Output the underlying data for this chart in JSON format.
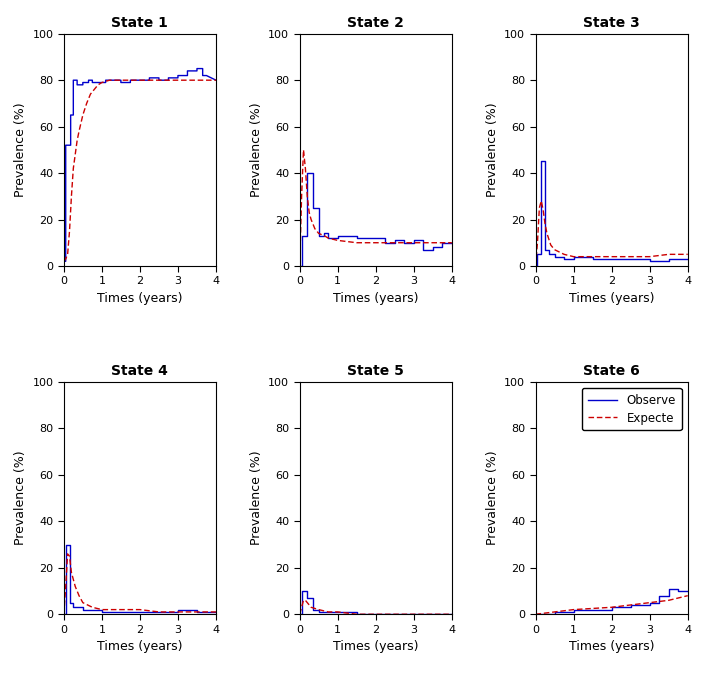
{
  "titles": [
    "State 1",
    "State 2",
    "State 3",
    "State 4",
    "State 5",
    "State 6"
  ],
  "xlabel": "Times (years)",
  "ylabel": "Prevalence (%)",
  "ylim": [
    0,
    100
  ],
  "xlim": [
    0,
    4
  ],
  "yticks": [
    0,
    20,
    40,
    60,
    80,
    100
  ],
  "xticks": [
    0,
    1,
    2,
    3,
    4
  ],
  "state1_obs_x": [
    0,
    0.05,
    0.05,
    0.18,
    0.18,
    0.25,
    0.25,
    0.35,
    0.35,
    0.5,
    0.5,
    0.65,
    0.65,
    0.75,
    0.75,
    1.0,
    1.0,
    1.1,
    1.1,
    1.5,
    1.5,
    1.75,
    1.75,
    2.0,
    2.0,
    2.25,
    2.25,
    2.5,
    2.5,
    2.75,
    2.75,
    3.0,
    3.0,
    3.25,
    3.25,
    3.5,
    3.5,
    3.65,
    3.65,
    3.75,
    3.75,
    4.0
  ],
  "state1_obs_y": [
    2,
    2,
    52,
    52,
    65,
    65,
    80,
    80,
    78,
    78,
    79,
    79,
    80,
    80,
    79,
    79,
    79,
    79,
    80,
    80,
    79,
    79,
    80,
    80,
    80,
    80,
    81,
    81,
    80,
    80,
    81,
    81,
    82,
    82,
    84,
    84,
    85,
    85,
    82,
    82,
    82,
    80
  ],
  "state1_exp_x": [
    0,
    0.05,
    0.1,
    0.15,
    0.2,
    0.25,
    0.3,
    0.35,
    0.4,
    0.5,
    0.6,
    0.7,
    0.8,
    0.9,
    1.0,
    1.2,
    1.5,
    1.75,
    2.0,
    2.5,
    3.0,
    3.5,
    4.0
  ],
  "state1_exp_y": [
    2,
    3,
    5,
    15,
    30,
    42,
    48,
    54,
    58,
    65,
    70,
    74,
    76,
    78,
    79,
    80,
    80,
    80,
    80,
    80,
    80,
    80,
    80
  ],
  "state2_obs_x": [
    0,
    0.05,
    0.05,
    0.2,
    0.2,
    0.35,
    0.35,
    0.5,
    0.5,
    0.65,
    0.65,
    0.75,
    0.75,
    1.0,
    1.0,
    1.5,
    1.5,
    2.0,
    2.0,
    2.25,
    2.25,
    2.5,
    2.5,
    2.75,
    2.75,
    3.0,
    3.0,
    3.25,
    3.25,
    3.5,
    3.5,
    3.75,
    3.75,
    4.0
  ],
  "state2_obs_y": [
    0,
    0,
    13,
    13,
    40,
    40,
    25,
    25,
    13,
    13,
    14,
    14,
    12,
    12,
    13,
    13,
    12,
    12,
    12,
    12,
    10,
    10,
    11,
    11,
    10,
    10,
    11,
    11,
    7,
    7,
    8,
    8,
    10,
    10
  ],
  "state2_exp_x": [
    0,
    0.05,
    0.1,
    0.15,
    0.2,
    0.25,
    0.3,
    0.4,
    0.5,
    0.65,
    0.75,
    1.0,
    1.5,
    2.0,
    2.5,
    3.0,
    3.5,
    4.0
  ],
  "state2_exp_y": [
    0,
    30,
    50,
    42,
    30,
    23,
    20,
    16,
    14,
    13,
    12,
    11,
    10,
    10,
    10,
    10,
    10,
    10
  ],
  "state3_obs_x": [
    0,
    0.05,
    0.05,
    0.15,
    0.15,
    0.25,
    0.25,
    0.35,
    0.35,
    0.5,
    0.5,
    0.75,
    0.75,
    1.0,
    1.0,
    1.5,
    1.5,
    2.0,
    2.0,
    2.5,
    2.5,
    3.0,
    3.0,
    3.5,
    3.5,
    4.0
  ],
  "state3_obs_y": [
    0,
    0,
    5,
    5,
    45,
    45,
    7,
    7,
    5,
    5,
    4,
    4,
    3,
    3,
    4,
    4,
    3,
    3,
    3,
    3,
    3,
    3,
    2,
    2,
    3,
    3
  ],
  "state3_exp_x": [
    0,
    0.05,
    0.1,
    0.15,
    0.2,
    0.25,
    0.3,
    0.4,
    0.5,
    0.75,
    1.0,
    1.5,
    2.0,
    2.5,
    3.0,
    3.5,
    4.0
  ],
  "state3_exp_y": [
    0,
    10,
    25,
    28,
    24,
    18,
    14,
    9,
    7,
    5,
    4,
    4,
    4,
    4,
    4,
    5,
    5
  ],
  "state4_obs_x": [
    0,
    0.05,
    0.05,
    0.15,
    0.15,
    0.25,
    0.25,
    0.5,
    0.5,
    0.75,
    0.75,
    1.0,
    1.0,
    1.5,
    1.5,
    2.0,
    2.0,
    2.5,
    2.5,
    3.0,
    3.0,
    3.5,
    3.5,
    4.0
  ],
  "state4_obs_y": [
    0,
    0,
    30,
    30,
    5,
    5,
    3,
    3,
    2,
    2,
    2,
    2,
    1,
    1,
    1,
    1,
    1,
    1,
    1,
    1,
    2,
    2,
    1,
    1
  ],
  "state4_exp_x": [
    0,
    0.05,
    0.1,
    0.15,
    0.2,
    0.3,
    0.4,
    0.5,
    0.75,
    1.0,
    1.5,
    2.0,
    2.5,
    3.0,
    3.5,
    4.0
  ],
  "state4_exp_y": [
    0,
    12,
    26,
    25,
    18,
    12,
    8,
    5,
    3,
    2,
    2,
    2,
    1,
    1,
    1,
    1
  ],
  "state5_obs_x": [
    0,
    0.05,
    0.05,
    0.2,
    0.2,
    0.35,
    0.35,
    0.5,
    0.5,
    0.75,
    0.75,
    1.0,
    1.0,
    1.5,
    1.5,
    4.0
  ],
  "state5_obs_y": [
    0,
    0,
    10,
    10,
    7,
    7,
    2,
    2,
    1,
    1,
    1,
    1,
    1,
    1,
    0,
    0
  ],
  "state5_exp_x": [
    0,
    0.05,
    0.1,
    0.15,
    0.2,
    0.3,
    0.5,
    0.75,
    1.0,
    1.5,
    2.0,
    3.0,
    4.0
  ],
  "state5_exp_y": [
    0,
    3,
    6,
    6,
    5,
    3,
    2,
    1,
    1,
    0,
    0,
    0,
    0
  ],
  "state6_obs_x": [
    0,
    0.5,
    0.5,
    1.0,
    1.0,
    1.5,
    1.5,
    2.0,
    2.0,
    2.5,
    2.5,
    3.0,
    3.0,
    3.25,
    3.25,
    3.5,
    3.5,
    3.75,
    3.75,
    4.0
  ],
  "state6_obs_y": [
    0,
    0,
    1,
    1,
    2,
    2,
    2,
    2,
    3,
    3,
    4,
    4,
    5,
    5,
    8,
    8,
    11,
    11,
    10,
    10
  ],
  "state6_exp_x": [
    0,
    0.25,
    0.5,
    0.75,
    1.0,
    1.5,
    2.0,
    2.5,
    3.0,
    3.25,
    3.5,
    3.75,
    4.0
  ],
  "state6_exp_y": [
    0,
    0.5,
    1,
    1.5,
    2,
    2.5,
    3,
    4,
    5,
    5.5,
    6,
    7,
    8
  ],
  "obs_color": "#0000cc",
  "exp_color": "#cc0000",
  "legend_labels": [
    "Observe",
    "Expecte"
  ],
  "bg_color": "#ffffff"
}
